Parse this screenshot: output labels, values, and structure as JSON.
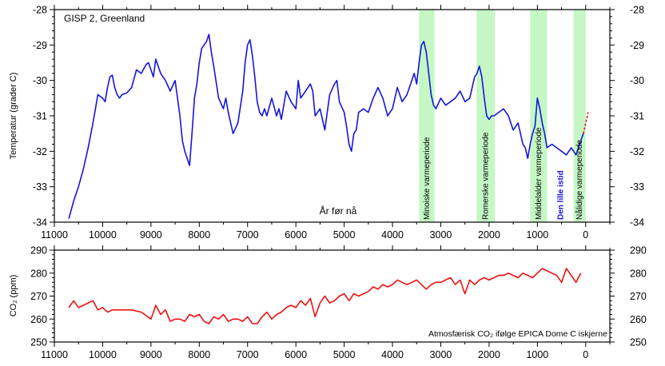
{
  "chart_data": [
    {
      "type": "line",
      "title": "GISP 2, Greenland",
      "xlabel": "År før nå",
      "ylabel": "Temperatur (grader C)",
      "xlim": [
        11000,
        -500
      ],
      "ylim": [
        -34,
        -28
      ],
      "x_ticks": [
        11000,
        10000,
        9000,
        8000,
        7000,
        6000,
        5000,
        4000,
        3000,
        2000,
        1000,
        0
      ],
      "y_ticks": [
        -28,
        -29,
        -30,
        -31,
        -32,
        -33,
        -34
      ],
      "grid": false,
      "periods": [
        {
          "label": "Minoiske varmeperiode",
          "start": 3450,
          "end": 3130,
          "highlight": true
        },
        {
          "label": "Romerske varmeperiode",
          "start": 2260,
          "end": 1880,
          "highlight": true
        },
        {
          "label": "Middelalder varmeperiode",
          "start": 1150,
          "end": 800,
          "highlight": true
        },
        {
          "label": "Den lille istid",
          "start": 590,
          "end": 440,
          "highlight": false
        },
        {
          "label": "Nålidige varmeperiode",
          "start": 250,
          "end": 0,
          "highlight": true
        }
      ],
      "series": [
        {
          "color": "#1515dd",
          "x": [
            10700,
            10600,
            10500,
            10400,
            10300,
            10200,
            10150,
            10100,
            10000,
            9950,
            9900,
            9850,
            9800,
            9750,
            9700,
            9650,
            9600,
            9500,
            9400,
            9300,
            9200,
            9100,
            9050,
            9000,
            8950,
            8900,
            8850,
            8800,
            8700,
            8600,
            8500,
            8450,
            8400,
            8350,
            8300,
            8250,
            8200,
            8150,
            8100,
            8050,
            8000,
            7950,
            7900,
            7850,
            7800,
            7750,
            7700,
            7600,
            7500,
            7450,
            7400,
            7300,
            7200,
            7100,
            7050,
            7000,
            6950,
            6900,
            6850,
            6800,
            6750,
            6700,
            6650,
            6600,
            6500,
            6400,
            6350,
            6300,
            6200,
            6100,
            6000,
            5950,
            5900,
            5800,
            5700,
            5650,
            5600,
            5500,
            5400,
            5300,
            5200,
            5150,
            5100,
            5000,
            4950,
            4900,
            4850,
            4800,
            4750,
            4700,
            4600,
            4500,
            4400,
            4300,
            4200,
            4100,
            4000,
            3900,
            3800,
            3700,
            3600,
            3550,
            3500,
            3450,
            3400,
            3350,
            3300,
            3250,
            3200,
            3150,
            3100,
            3000,
            2900,
            2800,
            2700,
            2600,
            2500,
            2400,
            2300,
            2250,
            2200,
            2150,
            2100,
            2050,
            2000,
            1950,
            1900,
            1800,
            1700,
            1600,
            1500,
            1400,
            1300,
            1250,
            1200,
            1150,
            1100,
            1050,
            1000,
            950,
            900,
            850,
            800,
            700,
            600,
            500,
            400,
            300,
            250,
            200,
            150,
            100,
            50
          ],
          "y": [
            -33.9,
            -33.4,
            -33.0,
            -32.5,
            -31.9,
            -31.2,
            -30.8,
            -30.4,
            -30.5,
            -30.6,
            -30.2,
            -29.9,
            -29.85,
            -30.2,
            -30.4,
            -30.5,
            -30.4,
            -30.35,
            -30.2,
            -29.7,
            -29.8,
            -29.55,
            -29.5,
            -29.7,
            -29.9,
            -29.4,
            -29.6,
            -29.8,
            -30.0,
            -30.3,
            -30.0,
            -30.5,
            -31.0,
            -31.7,
            -32.0,
            -32.2,
            -32.4,
            -31.5,
            -30.5,
            -30.1,
            -29.5,
            -29.1,
            -29.0,
            -28.9,
            -28.7,
            -29.2,
            -29.6,
            -30.5,
            -30.8,
            -30.5,
            -30.9,
            -31.5,
            -31.2,
            -30.3,
            -29.5,
            -29.0,
            -28.85,
            -29.3,
            -29.9,
            -30.6,
            -30.9,
            -31.0,
            -30.8,
            -31.0,
            -30.5,
            -31.0,
            -30.8,
            -31.1,
            -30.3,
            -30.6,
            -30.8,
            -30.0,
            -30.5,
            -30.3,
            -30.1,
            -30.3,
            -31.0,
            -30.8,
            -31.4,
            -30.4,
            -30.1,
            -30.0,
            -30.6,
            -30.9,
            -31.3,
            -31.8,
            -32.0,
            -31.5,
            -31.4,
            -30.9,
            -30.8,
            -30.9,
            -30.5,
            -30.2,
            -30.5,
            -31.0,
            -30.8,
            -30.2,
            -30.6,
            -30.4,
            -30.0,
            -29.8,
            -30.1,
            -29.5,
            -29.0,
            -28.9,
            -29.2,
            -29.8,
            -30.4,
            -30.7,
            -30.8,
            -30.5,
            -30.7,
            -30.6,
            -30.5,
            -30.3,
            -30.6,
            -30.5,
            -29.9,
            -29.8,
            -29.6,
            -29.9,
            -30.5,
            -31.0,
            -31.1,
            -31.0,
            -31.0,
            -30.9,
            -30.8,
            -31.0,
            -31.4,
            -31.2,
            -31.8,
            -31.9,
            -32.2,
            -31.8,
            -31.5,
            -31.3,
            -30.5,
            -30.8,
            -31.2,
            -31.5,
            -31.9,
            -31.8,
            -31.9,
            -32.0,
            -32.1,
            -31.9,
            -32.0,
            -32.1,
            -31.9,
            -31.7,
            -31.5
          ],
          "line_style": "solid"
        },
        {
          "color": "#ee1111",
          "x": [
            50,
            0,
            -50
          ],
          "y": [
            -31.5,
            -31.2,
            -30.9
          ],
          "line_style": "dashed"
        }
      ]
    },
    {
      "type": "line",
      "ylabel": "CO₂ (ppm)",
      "annotation": "Atmosfærisk CO₂ ifølge EPICA Dome C iskjerne",
      "xlim": [
        11000,
        -500
      ],
      "ylim": [
        250,
        290
      ],
      "x_ticks": [
        11000,
        10000,
        9000,
        8000,
        7000,
        6000,
        5000,
        4000,
        3000,
        2000,
        1000,
        0
      ],
      "y_ticks": [
        250,
        260,
        270,
        280,
        290
      ],
      "grid": false,
      "series": [
        {
          "color": "#ee1111",
          "x": [
            10700,
            10600,
            10500,
            10400,
            10300,
            10200,
            10100,
            10000,
            9900,
            9800,
            9600,
            9400,
            9200,
            9000,
            8900,
            8800,
            8700,
            8600,
            8500,
            8400,
            8300,
            8200,
            8100,
            8000,
            7900,
            7800,
            7700,
            7600,
            7500,
            7400,
            7300,
            7200,
            7100,
            7000,
            6900,
            6800,
            6700,
            6600,
            6500,
            6400,
            6300,
            6200,
            6100,
            6000,
            5900,
            5800,
            5700,
            5600,
            5500,
            5400,
            5300,
            5200,
            5100,
            5000,
            4900,
            4800,
            4700,
            4600,
            4500,
            4400,
            4300,
            4200,
            4100,
            4000,
            3900,
            3800,
            3700,
            3600,
            3500,
            3400,
            3300,
            3200,
            3100,
            3000,
            2900,
            2800,
            2700,
            2600,
            2500,
            2400,
            2300,
            2200,
            2100,
            2000,
            1900,
            1800,
            1700,
            1600,
            1500,
            1400,
            1300,
            1200,
            1100,
            1000,
            900,
            800,
            700,
            600,
            500,
            400,
            300,
            200,
            100
          ],
          "y": [
            265,
            268,
            265,
            266,
            267,
            268,
            264,
            265,
            263,
            264,
            264,
            264,
            263,
            260,
            266,
            262,
            264,
            259,
            260,
            260,
            259,
            262,
            261,
            262,
            259,
            258,
            261,
            260,
            262,
            259,
            260,
            260,
            259,
            261,
            258,
            258,
            261,
            263,
            260,
            262,
            263,
            265,
            266,
            265,
            268,
            266,
            269,
            261,
            267,
            270,
            267,
            268,
            270,
            271,
            268,
            271,
            270,
            271,
            272,
            274,
            273,
            275,
            274,
            275,
            277,
            276,
            275,
            276,
            277,
            275,
            273,
            275,
            276,
            276,
            277,
            278,
            275,
            277,
            271,
            277,
            275,
            277,
            278,
            277,
            278,
            279,
            279,
            280,
            279,
            278,
            280,
            279,
            278,
            280,
            282,
            281,
            280,
            279,
            276,
            282,
            279,
            276,
            280
          ],
          "line_style": "solid"
        }
      ]
    }
  ]
}
